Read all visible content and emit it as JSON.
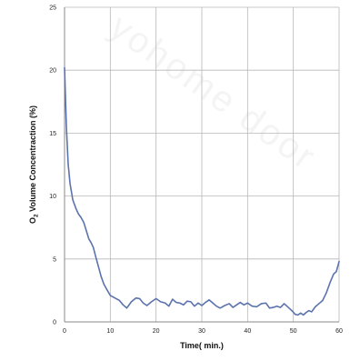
{
  "chart_data": {
    "type": "line",
    "title": "",
    "xlabel": "Time( min.)",
    "ylabel_main": "O",
    "ylabel_sub": "2",
    "ylabel_rest": " Volume Concentraction (%)",
    "xlim": [
      0,
      60
    ],
    "ylim": [
      0,
      25
    ],
    "x_ticks": [
      0,
      10,
      20,
      30,
      40,
      50,
      60
    ],
    "y_ticks": [
      0,
      5,
      10,
      15,
      20,
      25
    ],
    "grid": true,
    "legend": "none",
    "watermark": "yohome door",
    "colors": {
      "line": "#5b73ad",
      "grid": "#b8b8b8",
      "axis": "#8a8a8a",
      "watermark": "#d8d8d8"
    },
    "series": [
      {
        "x": [
          0,
          0.4,
          0.8,
          1.2,
          1.8,
          2.5,
          3,
          3.6,
          4.2,
          4.8,
          5.3,
          5.8,
          6.3,
          6.8,
          7.4,
          8,
          8.6,
          9.2,
          10,
          11,
          12,
          12.8,
          13.6,
          14.6,
          15.6,
          16.4,
          17.2,
          18,
          19,
          20,
          21,
          22,
          22.8,
          23.6,
          24.4,
          25.2,
          26,
          26.8,
          27.6,
          28.4,
          29.2,
          30,
          30.8,
          31.6,
          32.4,
          33.2,
          34,
          35,
          36,
          36.8,
          37.6,
          38.4,
          39.2,
          40,
          41,
          42,
          43,
          44,
          44.8,
          45.6,
          46.4,
          47.2,
          48,
          48.6,
          49.2,
          49.8,
          50.4,
          51,
          51.6,
          52.2,
          52.8,
          53.4,
          54,
          54.8,
          55.6,
          56.4,
          57.2,
          58,
          58.8,
          59.4,
          60
        ],
        "y": [
          20.2,
          15.5,
          12.5,
          11.0,
          9.7,
          9.0,
          8.6,
          8.3,
          7.9,
          7.2,
          6.6,
          6.3,
          5.9,
          5.2,
          4.4,
          3.6,
          3.0,
          2.6,
          2.1,
          1.9,
          1.7,
          1.35,
          1.1,
          1.6,
          1.9,
          1.85,
          1.5,
          1.3,
          1.6,
          1.85,
          1.6,
          1.5,
          1.25,
          1.8,
          1.55,
          1.5,
          1.35,
          1.65,
          1.6,
          1.25,
          1.5,
          1.3,
          1.55,
          1.75,
          1.5,
          1.25,
          1.1,
          1.3,
          1.45,
          1.15,
          1.35,
          1.55,
          1.35,
          1.5,
          1.25,
          1.2,
          1.45,
          1.5,
          1.1,
          1.15,
          1.25,
          1.15,
          1.45,
          1.25,
          1.05,
          0.85,
          0.6,
          0.55,
          0.7,
          0.55,
          0.75,
          0.9,
          0.8,
          1.2,
          1.45,
          1.7,
          2.3,
          3.1,
          3.8,
          4.0,
          4.8
        ]
      }
    ]
  }
}
